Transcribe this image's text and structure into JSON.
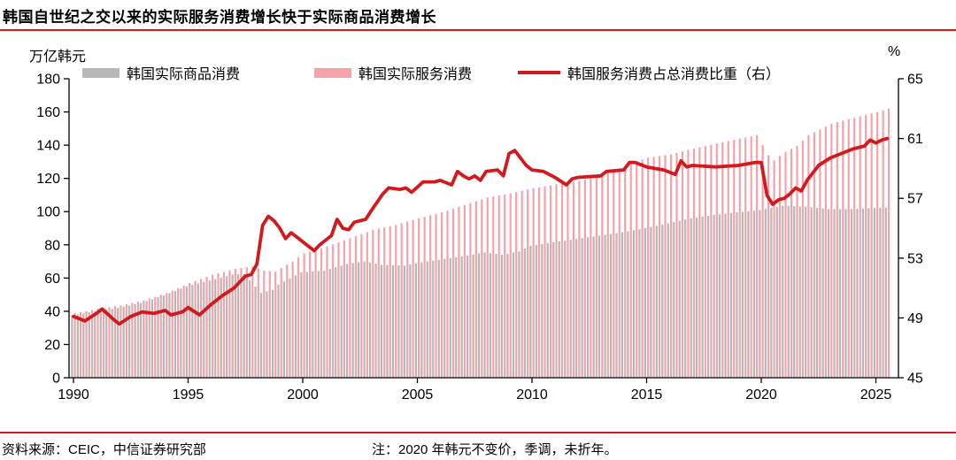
{
  "title": "韩国自世纪之交以来的实际服务消费增长快于实际商品消费增长",
  "colors": {
    "accent_red": "#d2191d",
    "goods_gray": "#b7b7b9",
    "services_pink": "#f5a3a8",
    "text": "#000000"
  },
  "footer": {
    "source": "资料来源：CEIC，中信证券研究部",
    "note": "注：2020 年韩元不变价，季调，未折年。"
  },
  "chart_data": {
    "type": "combo-bar-line",
    "bar_sampling": "quarterly",
    "x_range": [
      1990,
      2025.5
    ],
    "x_ticks": [
      1990,
      1995,
      2000,
      2005,
      2010,
      2015,
      2020,
      2025
    ],
    "left_axis": {
      "label": "万亿韩元",
      "min": 0,
      "max": 180,
      "tick_step": 20,
      "ticks": [
        0,
        20,
        40,
        60,
        80,
        100,
        120,
        140,
        160,
        180
      ]
    },
    "right_axis": {
      "label": "%",
      "min": 45,
      "max": 65,
      "tick_step": 4,
      "ticks": [
        45,
        49,
        53,
        57,
        61,
        65
      ]
    },
    "series": [
      {
        "name": "韩国实际商品消费",
        "type": "bar",
        "axis": "left",
        "color": "#b7b7b9",
        "points": [
          [
            1990,
            37.5
          ],
          [
            1991,
            40
          ],
          [
            1992,
            42
          ],
          [
            1993,
            45
          ],
          [
            1994,
            49.5
          ],
          [
            1995,
            55
          ],
          [
            1996,
            58.5
          ],
          [
            1997,
            62
          ],
          [
            1997.5,
            62.5
          ],
          [
            1998.25,
            51
          ],
          [
            1998.75,
            53
          ],
          [
            1999,
            56
          ],
          [
            2000,
            63.5
          ],
          [
            2001,
            64.5
          ],
          [
            2002,
            68.5
          ],
          [
            2002.75,
            70
          ],
          [
            2003.5,
            68
          ],
          [
            2004.5,
            67.5
          ],
          [
            2005,
            69
          ],
          [
            2006,
            71
          ],
          [
            2007,
            73
          ],
          [
            2008,
            75.5
          ],
          [
            2008.75,
            74
          ],
          [
            2009.5,
            76
          ],
          [
            2010,
            79.5
          ],
          [
            2011,
            81.5
          ],
          [
            2012,
            83.5
          ],
          [
            2013,
            85.5
          ],
          [
            2014,
            87.5
          ],
          [
            2015,
            90
          ],
          [
            2016,
            93
          ],
          [
            2017,
            96
          ],
          [
            2018,
            98
          ],
          [
            2019,
            99.5
          ],
          [
            2020,
            101
          ],
          [
            2021,
            103.5
          ],
          [
            2022,
            103
          ],
          [
            2023,
            101.5
          ],
          [
            2024,
            101.5
          ],
          [
            2025.5,
            102.5
          ]
        ]
      },
      {
        "name": "韩国实际服务消费",
        "type": "bar",
        "axis": "left",
        "color": "#f5a3a8",
        "points": [
          [
            1990,
            39
          ],
          [
            1990.5,
            40
          ],
          [
            1991,
            41.5
          ],
          [
            1992,
            43.5
          ],
          [
            1993,
            46.5
          ],
          [
            1994,
            51
          ],
          [
            1995,
            57
          ],
          [
            1996,
            62
          ],
          [
            1997,
            65.5
          ],
          [
            1997.75,
            67
          ],
          [
            1998.25,
            64.5
          ],
          [
            1998.75,
            64
          ],
          [
            1999,
            66
          ],
          [
            1999.5,
            70
          ],
          [
            2000,
            75
          ],
          [
            2001,
            79
          ],
          [
            2002,
            84
          ],
          [
            2003,
            89
          ],
          [
            2004,
            92
          ],
          [
            2005,
            96
          ],
          [
            2006,
            99.5
          ],
          [
            2007,
            104
          ],
          [
            2008,
            108.5
          ],
          [
            2009,
            111
          ],
          [
            2010,
            114
          ],
          [
            2011,
            116.5
          ],
          [
            2012,
            118.5
          ],
          [
            2013,
            122
          ],
          [
            2014,
            127.5
          ],
          [
            2014.5,
            130
          ],
          [
            2015,
            132.5
          ],
          [
            2016,
            134.5
          ],
          [
            2017,
            138
          ],
          [
            2018,
            141
          ],
          [
            2019,
            144
          ],
          [
            2019.75,
            146
          ],
          [
            2020.25,
            134
          ],
          [
            2020.5,
            131
          ],
          [
            2020.75,
            133.5
          ],
          [
            2021,
            136
          ],
          [
            2021.5,
            139.5
          ],
          [
            2022,
            146
          ],
          [
            2022.5,
            149.5
          ],
          [
            2023,
            153
          ],
          [
            2024,
            156.5
          ],
          [
            2025,
            160
          ],
          [
            2025.5,
            162
          ]
        ]
      },
      {
        "name": "韩国服务消费占总消费比重（右）",
        "type": "line",
        "axis": "right",
        "color": "#d2191d",
        "points": [
          [
            1990,
            49.1
          ],
          [
            1990.5,
            48.8
          ],
          [
            1991,
            49.3
          ],
          [
            1991.25,
            49.6
          ],
          [
            1991.75,
            48.9
          ],
          [
            1992,
            48.6
          ],
          [
            1992.5,
            49.1
          ],
          [
            1993,
            49.4
          ],
          [
            1993.5,
            49.3
          ],
          [
            1994,
            49.5
          ],
          [
            1994.25,
            49.2
          ],
          [
            1994.75,
            49.4
          ],
          [
            1995,
            49.7
          ],
          [
            1995.5,
            49.2
          ],
          [
            1996,
            49.9
          ],
          [
            1996.5,
            50.5
          ],
          [
            1997,
            51
          ],
          [
            1997.5,
            51.8
          ],
          [
            1997.75,
            51.9
          ],
          [
            1998,
            52.6
          ],
          [
            1998.25,
            55.2
          ],
          [
            1998.5,
            55.8
          ],
          [
            1998.75,
            55.5
          ],
          [
            1999,
            55
          ],
          [
            1999.25,
            54.3
          ],
          [
            1999.5,
            54.7
          ],
          [
            1999.75,
            54.4
          ],
          [
            2000,
            54.1
          ],
          [
            2000.5,
            53.5
          ],
          [
            2000.75,
            53.9
          ],
          [
            2001.25,
            54.5
          ],
          [
            2001.5,
            55.6
          ],
          [
            2001.75,
            55
          ],
          [
            2002,
            54.9
          ],
          [
            2002.25,
            55.4
          ],
          [
            2002.75,
            55.6
          ],
          [
            2003,
            56.2
          ],
          [
            2003.5,
            57.3
          ],
          [
            2003.75,
            57.7
          ],
          [
            2004.25,
            57.6
          ],
          [
            2004.5,
            57.7
          ],
          [
            2004.75,
            57.4
          ],
          [
            2005.25,
            58.1
          ],
          [
            2005.75,
            58.1
          ],
          [
            2006,
            58.2
          ],
          [
            2006.5,
            57.9
          ],
          [
            2006.75,
            58.8
          ],
          [
            2007,
            58.5
          ],
          [
            2007.25,
            58.3
          ],
          [
            2007.5,
            58.5
          ],
          [
            2007.75,
            58.2
          ],
          [
            2008,
            58.8
          ],
          [
            2008.5,
            58.9
          ],
          [
            2008.75,
            58.5
          ],
          [
            2009,
            60
          ],
          [
            2009.25,
            60.2
          ],
          [
            2009.5,
            59.7
          ],
          [
            2009.75,
            59.2
          ],
          [
            2010,
            58.9
          ],
          [
            2010.5,
            58.8
          ],
          [
            2011,
            58.4
          ],
          [
            2011.5,
            57.9
          ],
          [
            2011.75,
            58.3
          ],
          [
            2012,
            58.4
          ],
          [
            2013,
            58.5
          ],
          [
            2013.25,
            58.8
          ],
          [
            2014,
            58.9
          ],
          [
            2014.25,
            59.4
          ],
          [
            2014.5,
            59.4
          ],
          [
            2015,
            59.1
          ],
          [
            2015.75,
            58.9
          ],
          [
            2016.25,
            58.6
          ],
          [
            2016.5,
            59.5
          ],
          [
            2016.75,
            59.1
          ],
          [
            2017,
            59.2
          ],
          [
            2018,
            59.1
          ],
          [
            2019,
            59.2
          ],
          [
            2019.75,
            59.4
          ],
          [
            2020,
            59.4
          ],
          [
            2020.25,
            57.2
          ],
          [
            2020.5,
            56.6
          ],
          [
            2020.75,
            56.9
          ],
          [
            2021,
            57
          ],
          [
            2021.25,
            57.3
          ],
          [
            2021.5,
            57.7
          ],
          [
            2021.75,
            57.5
          ],
          [
            2022,
            58.2
          ],
          [
            2022.5,
            59.2
          ],
          [
            2023,
            59.7
          ],
          [
            2023.5,
            60
          ],
          [
            2024,
            60.3
          ],
          [
            2024.5,
            60.5
          ],
          [
            2024.75,
            60.9
          ],
          [
            2025,
            60.7
          ],
          [
            2025.25,
            60.9
          ],
          [
            2025.5,
            61
          ]
        ]
      }
    ]
  }
}
